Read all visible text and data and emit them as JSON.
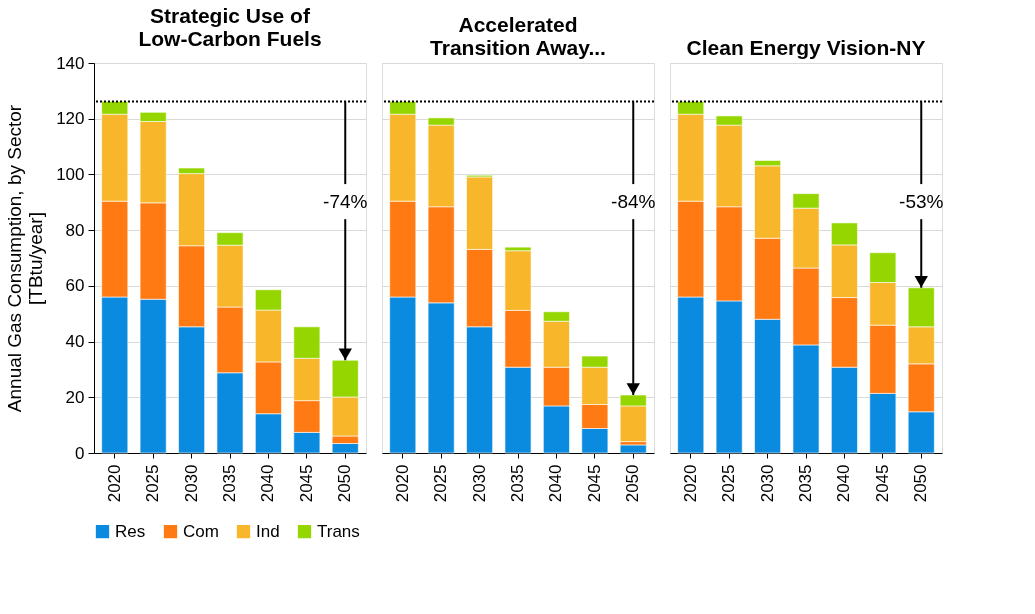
{
  "chart_data": [
    {
      "type": "bar",
      "title": "Strategic Use of\nLow-Carbon Fuels",
      "ylabel": "Annual Gas Consumption, by Sector\n[TBtu/year]",
      "categories": [
        "2020",
        "2025",
        "2030",
        "2035",
        "2040",
        "2045",
        "2050"
      ],
      "stacked": true,
      "ylim": [
        0,
        140
      ],
      "yticks": [
        0,
        20,
        40,
        60,
        80,
        100,
        120,
        140
      ],
      "grid": "y",
      "legend": "bottom",
      "series": [
        {
          "name": "Res",
          "color": "#0a8be0",
          "values": [
            56,
            55.2,
            45.3,
            28.8,
            14.1,
            7.4,
            3.4
          ]
        },
        {
          "name": "Com",
          "color": "#ff7a13",
          "values": [
            34.4,
            34.6,
            29.1,
            23.6,
            18.6,
            11.4,
            2.7
          ]
        },
        {
          "name": "Ind",
          "color": "#f8b62a",
          "values": [
            31.2,
            29.2,
            25.9,
            22.2,
            18.6,
            15.2,
            14
          ]
        },
        {
          "name": "Trans",
          "color": "#95d600",
          "values": [
            4.6,
            3.3,
            2.0,
            4.5,
            7.3,
            11.3,
            13.2
          ]
        }
      ],
      "ref_lines": [
        {
          "axis": "y",
          "value": 126.2,
          "line_style": "dotted",
          "color": "#000000"
        }
      ],
      "annotations": [
        {
          "text": "-74%",
          "x": "2050",
          "y": 33.3
        }
      ]
    },
    {
      "type": "bar",
      "title": "Accelerated\nTransition Away...",
      "categories": [
        "2020",
        "2025",
        "2030",
        "2035",
        "2040",
        "2045",
        "2050"
      ],
      "stacked": true,
      "ylim": [
        0,
        140
      ],
      "yticks": [
        0,
        20,
        40,
        60,
        80,
        100,
        120,
        140
      ],
      "grid": "y",
      "legend": "bottom",
      "tick_labels": "x",
      "series": [
        {
          "name": "Res",
          "color": "#0a8be0",
          "values": [
            56,
            53.9,
            45.3,
            30.8,
            16.9,
            8.8,
            2.9
          ]
        },
        {
          "name": "Com",
          "color": "#ff7a13",
          "values": [
            34.4,
            34.5,
            27.8,
            20.4,
            13.9,
            8.6,
            1.2
          ]
        },
        {
          "name": "Ind",
          "color": "#f8b62a",
          "values": [
            31.2,
            29.3,
            26,
            21.4,
            16.5,
            13.4,
            12.8
          ]
        },
        {
          "name": "Trans",
          "color": "#95d600",
          "values": [
            4.6,
            2.6,
            0.6,
            1.3,
            3.4,
            4.0,
            3.9
          ]
        }
      ],
      "ref_lines": [
        {
          "axis": "y",
          "value": 126.2,
          "line_style": "dotted",
          "color": "#000000"
        }
      ],
      "annotations": [
        {
          "text": "-84%",
          "x": "2050",
          "y": 20.8
        }
      ]
    },
    {
      "type": "bar",
      "title": "Clean Energy Vision-NY",
      "categories": [
        "2020",
        "2025",
        "2030",
        "2035",
        "2040",
        "2045",
        "2050"
      ],
      "stacked": true,
      "ylim": [
        0,
        140
      ],
      "yticks": [
        0,
        20,
        40,
        60,
        80,
        100,
        120,
        140
      ],
      "grid": "y",
      "legend": "bottom",
      "tick_labels": "x",
      "series": [
        {
          "name": "Res",
          "color": "#0a8be0",
          "values": [
            56,
            54.6,
            48,
            38.8,
            30.8,
            21.4,
            14.8
          ]
        },
        {
          "name": "Com",
          "color": "#ff7a13",
          "values": [
            34.4,
            33.8,
            29.1,
            27.6,
            25,
            24.5,
            17.2
          ]
        },
        {
          "name": "Ind",
          "color": "#f8b62a",
          "values": [
            31.2,
            29.3,
            26,
            21.5,
            18.9,
            15.3,
            13.3
          ]
        },
        {
          "name": "Trans",
          "color": "#95d600",
          "values": [
            4.6,
            3.3,
            1.9,
            5.2,
            7.9,
            10.7,
            14
          ]
        }
      ],
      "ref_lines": [
        {
          "axis": "y",
          "value": 126.2,
          "line_style": "dotted",
          "color": "#000000"
        }
      ],
      "annotations": [
        {
          "text": "-53%",
          "x": "2050",
          "y": 59.3
        }
      ]
    }
  ]
}
